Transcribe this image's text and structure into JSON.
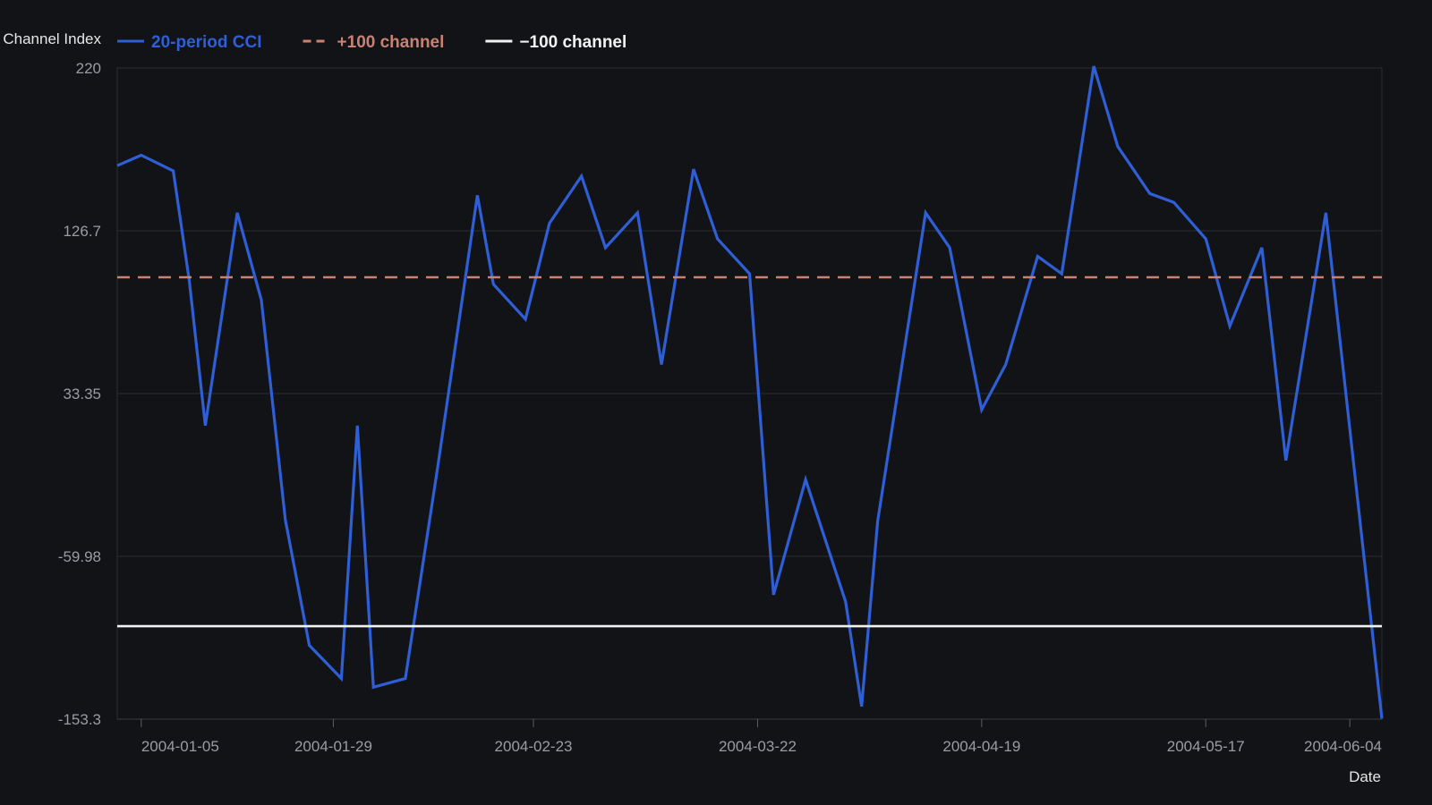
{
  "chart_data": {
    "type": "line",
    "title": "",
    "ylabel": "Commodity Channel Index",
    "xlabel": "Date",
    "ylim": [
      -153.3,
      220
    ],
    "xlim": [
      "2004-01-02",
      "2004-06-08"
    ],
    "y_ticks": [
      "220",
      "126.7",
      "33.35",
      "-59.98",
      "-153.3"
    ],
    "x_ticks": [
      "2004-01-05",
      "2004-01-29",
      "2004-02-23",
      "2004-03-22",
      "2004-04-19",
      "2004-05-17",
      "2004-06-04"
    ],
    "grid": true,
    "legend_position": "top-left",
    "series": [
      {
        "name": "20-period CCI",
        "color": "#2f5fd6",
        "style": "solid",
        "points": [
          [
            "2004-01-02",
            164
          ],
          [
            "2004-01-05",
            170
          ],
          [
            "2004-01-09",
            161
          ],
          [
            "2004-01-11",
            98
          ],
          [
            "2004-01-13",
            15
          ],
          [
            "2004-01-17",
            137
          ],
          [
            "2004-01-20",
            87
          ],
          [
            "2004-01-23",
            -39
          ],
          [
            "2004-01-26",
            -111
          ],
          [
            "2004-01-30",
            -130
          ],
          [
            "2004-02-01",
            15
          ],
          [
            "2004-02-03",
            -135
          ],
          [
            "2004-02-07",
            -130
          ],
          [
            "2004-02-11",
            -10
          ],
          [
            "2004-02-16",
            147
          ],
          [
            "2004-02-18",
            96
          ],
          [
            "2004-02-22",
            76
          ],
          [
            "2004-02-25",
            131
          ],
          [
            "2004-02-29",
            158
          ],
          [
            "2004-03-03",
            117
          ],
          [
            "2004-03-07",
            137
          ],
          [
            "2004-03-10",
            50
          ],
          [
            "2004-03-14",
            162
          ],
          [
            "2004-03-17",
            122
          ],
          [
            "2004-03-21",
            102
          ],
          [
            "2004-03-24",
            -82
          ],
          [
            "2004-03-28",
            -16
          ],
          [
            "2004-04-02",
            -86
          ],
          [
            "2004-04-04",
            -146
          ],
          [
            "2004-04-06",
            -40
          ],
          [
            "2004-04-12",
            137
          ],
          [
            "2004-04-15",
            117
          ],
          [
            "2004-04-19",
            24
          ],
          [
            "2004-04-22",
            50
          ],
          [
            "2004-04-26",
            112
          ],
          [
            "2004-04-29",
            102
          ],
          [
            "2004-05-03",
            221
          ],
          [
            "2004-05-06",
            175
          ],
          [
            "2004-05-10",
            148
          ],
          [
            "2004-05-13",
            143
          ],
          [
            "2004-05-17",
            122
          ],
          [
            "2004-05-20",
            72
          ],
          [
            "2004-05-24",
            117
          ],
          [
            "2004-05-27",
            -5
          ],
          [
            "2004-06-01",
            137
          ],
          [
            "2004-06-08",
            -153
          ]
        ]
      },
      {
        "name": "+100 channel",
        "color": "#c98272",
        "style": "dashed",
        "points": [
          [
            "2004-01-02",
            100
          ],
          [
            "2004-06-08",
            100
          ]
        ]
      },
      {
        "name": "−100 channel",
        "color": "#f2f2f2",
        "style": "solid",
        "points": [
          [
            "2004-01-02",
            -100
          ],
          [
            "2004-06-08",
            -100
          ]
        ]
      }
    ]
  }
}
